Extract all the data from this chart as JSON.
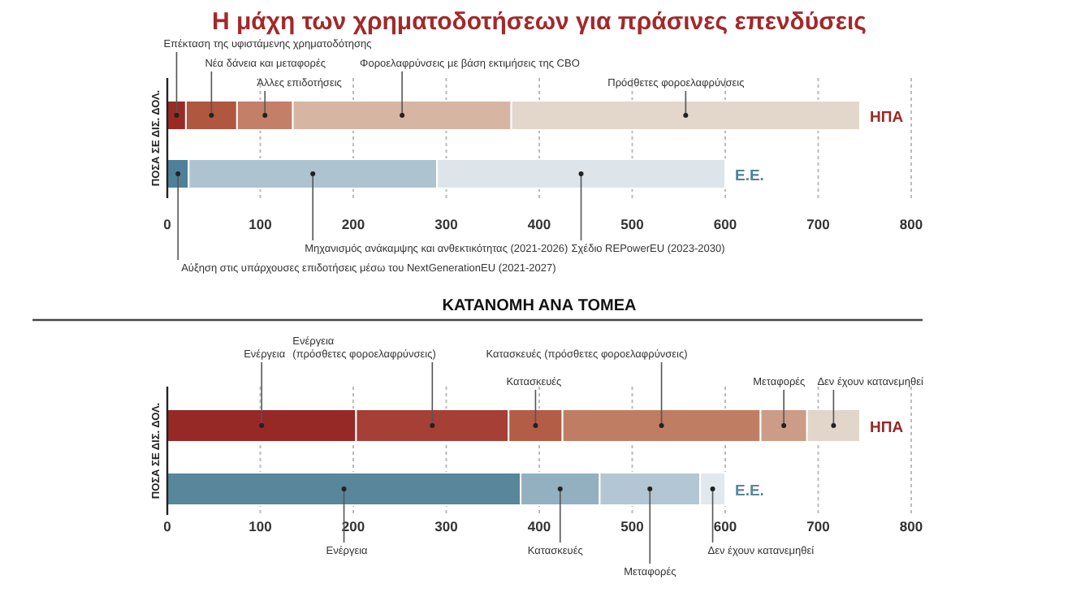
{
  "chart_data": [
    {
      "type": "bar",
      "orientation": "horizontal",
      "stacked": true,
      "grid": "x",
      "title": "Η μάχη των χρηματοδοτήσεων για πράσινες επενδύσεις",
      "ylabel": "ΠΟΣΑ ΣΕ ΔΙΣ. ΔΟΛ.",
      "categories": [
        "ΗΠΑ",
        "Ε.Ε."
      ],
      "xlim": [
        0,
        800
      ],
      "xticks": [
        0,
        100,
        200,
        300,
        400,
        500,
        600,
        700,
        800
      ],
      "series": [
        {
          "values": [
            20,
            23
          ],
          "colors": [
            "#9b2a25",
            "#4e8199"
          ]
        },
        {
          "values": [
            55,
            267
          ],
          "colors": [
            "#b0573f",
            "#aec3d0"
          ]
        },
        {
          "values": [
            60,
            310
          ],
          "colors": [
            "#c47f68",
            "#dde5eb"
          ]
        },
        {
          "values": [
            235,
            null
          ],
          "colors": [
            "#d7b5a3",
            null
          ]
        },
        {
          "values": [
            375,
            null
          ],
          "colors": [
            "#e3d7cc",
            null
          ]
        }
      ],
      "annotations": [
        "Επέκταση της υφιστάμενης χρηματοδότησης",
        "Νέα δάνεια και μεταφορές",
        "Άλλες επιδοτήσεις",
        "Φοροελαφρύνσεις με βάση εκτιμήσεις της CBO",
        "Πρόσθετες φοροελαφρύνσεις",
        "Αύξηση στις υπάρχουσες επιδοτήσεις μέσω του NextGenerationEU (2021-2027)",
        "Μηχανισμός ανάκαμψης και ανθεκτικότητας  (2021-2026)",
        "Σχέδιο REPowerEU (2023-2030)"
      ]
    },
    {
      "type": "bar",
      "orientation": "horizontal",
      "stacked": true,
      "grid": "x",
      "title": "ΚΑΤΑΝΟΜΗ ΑΝΑ ΤΟΜΕΑ",
      "ylabel": "ΠΟΣΑ ΣΕ ΔΙΣ. ΔΟΛ.",
      "categories": [
        "ΗΠΑ",
        "Ε.Ε."
      ],
      "xlim": [
        0,
        800
      ],
      "xticks": [
        0,
        100,
        200,
        300,
        400,
        500,
        600,
        700,
        800
      ],
      "series": [
        {
          "values": [
            203,
            380
          ],
          "colors": [
            "#962826",
            "#58879b"
          ]
        },
        {
          "values": [
            164,
            85
          ],
          "colors": [
            "#a63f36",
            "#93b0c0"
          ]
        },
        {
          "values": [
            58,
            108
          ],
          "colors": [
            "#b35d47",
            "#b3c6d3"
          ]
        },
        {
          "values": [
            213,
            27
          ],
          "colors": [
            "#bf7d64",
            "#e1e8ee"
          ]
        },
        {
          "values": [
            50,
            null
          ],
          "colors": [
            "#cc9c86",
            null
          ]
        },
        {
          "values": [
            57,
            null
          ],
          "colors": [
            "#e2d6cb",
            null
          ]
        }
      ],
      "annotations": [
        "Ενέργεια",
        "Ενέργεια (πρόσθετες φοροελαφρύνσεις)",
        "Κατασκευές",
        "Κατασκευές (πρόσθετες φοροελαφρύνσεις)",
        "Μεταφορές",
        "Δεν έχουν κατανεμηθεί",
        "Ενέργεια",
        "Κατασκευές",
        "Μεταφορές",
        "Δεν έχουν κατανεμηθεί"
      ]
    }
  ]
}
